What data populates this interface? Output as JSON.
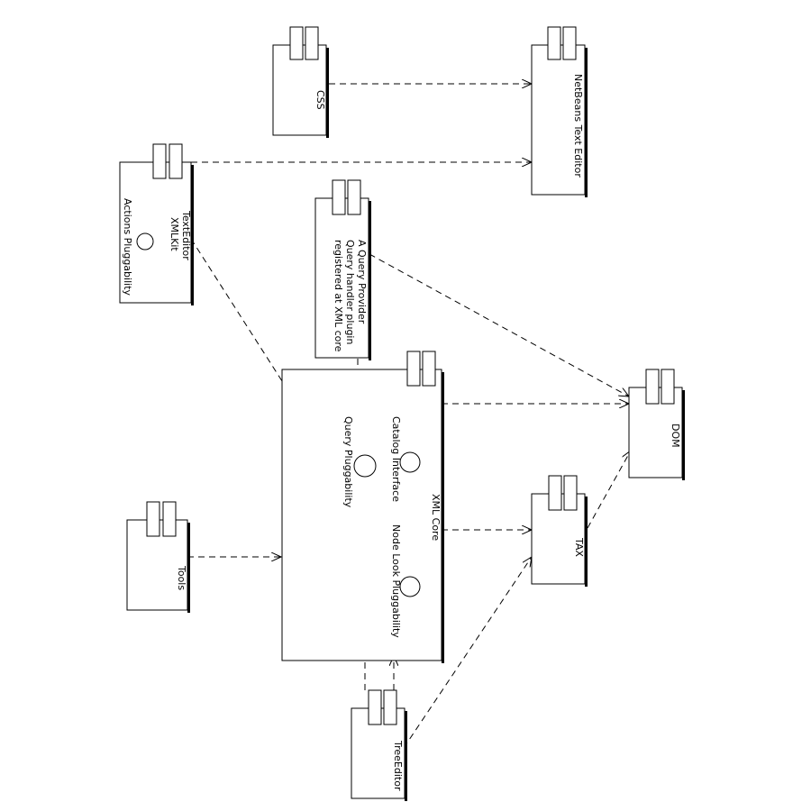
{
  "components": {
    "css": {
      "name": "CSS"
    },
    "netbeans_text_editor": {
      "name": "NetBeans Text Editor"
    },
    "text_editor": {
      "name": "TextEditor",
      "interfaces": [
        "XMLKit",
        "Actions Pluggability"
      ]
    },
    "query_provider": {
      "lines": [
        "A Query Provider",
        "Query handler plugin",
        "registered at XML core"
      ]
    },
    "xml_core": {
      "name": "XML Core",
      "interfaces": {
        "catalog": "Catalog Interface",
        "node_look": "Node Look Pluggability",
        "query": "Query Pluggability"
      }
    },
    "dom": {
      "name": "DOM"
    },
    "tax": {
      "name": "TAX"
    },
    "tools": {
      "name": "Tools"
    },
    "tree_editor": {
      "name": "TreeEditor"
    }
  }
}
